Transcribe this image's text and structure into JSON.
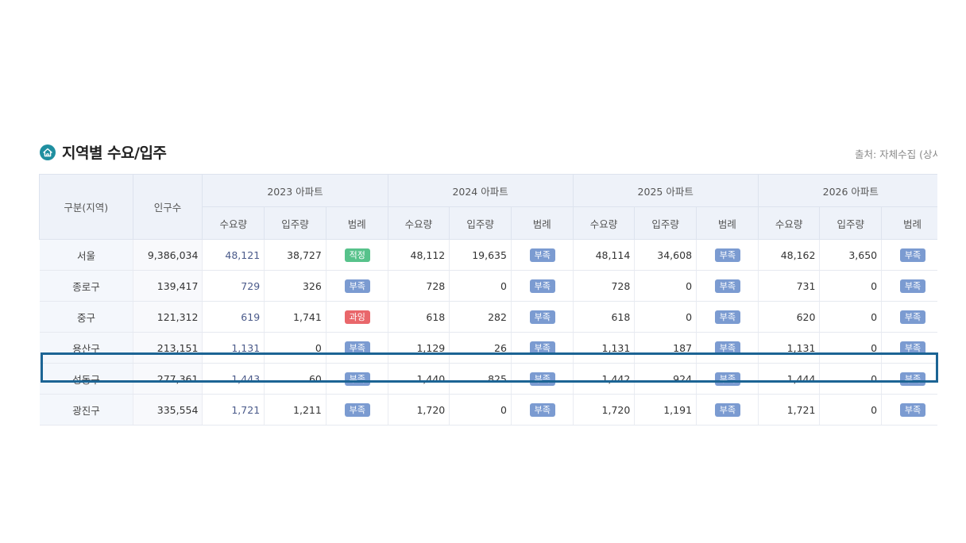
{
  "section": {
    "title": "지역별 수요/입주",
    "icon": "home-icon",
    "source": "출처: 자체수집 (상시"
  },
  "table": {
    "headers": {
      "region": "구분(지역)",
      "population": "인구수",
      "years": [
        "2023 아파트",
        "2024 아파트",
        "2025 아파트",
        "2026 아파트"
      ],
      "sub": [
        "수요량",
        "입주량",
        "범례"
      ]
    },
    "rows": [
      {
        "region": "서울",
        "population": "9,386,034",
        "years": [
          {
            "demand": "48,121",
            "supply": "38,727",
            "legend": "적정"
          },
          {
            "demand": "48,112",
            "supply": "19,635",
            "legend": "부족"
          },
          {
            "demand": "48,114",
            "supply": "34,608",
            "legend": "부족"
          },
          {
            "demand": "48,162",
            "supply": "3,650",
            "legend": "부족"
          }
        ]
      },
      {
        "region": "종로구",
        "population": "139,417",
        "years": [
          {
            "demand": "729",
            "supply": "326",
            "legend": "부족"
          },
          {
            "demand": "728",
            "supply": "0",
            "legend": "부족"
          },
          {
            "demand": "728",
            "supply": "0",
            "legend": "부족"
          },
          {
            "demand": "731",
            "supply": "0",
            "legend": "부족"
          }
        ]
      },
      {
        "region": "중구",
        "population": "121,312",
        "years": [
          {
            "demand": "619",
            "supply": "1,741",
            "legend": "과잉"
          },
          {
            "demand": "618",
            "supply": "282",
            "legend": "부족"
          },
          {
            "demand": "618",
            "supply": "0",
            "legend": "부족"
          },
          {
            "demand": "620",
            "supply": "0",
            "legend": "부족"
          }
        ]
      },
      {
        "region": "용산구",
        "population": "213,151",
        "years": [
          {
            "demand": "1,131",
            "supply": "0",
            "legend": "부족"
          },
          {
            "demand": "1,129",
            "supply": "26",
            "legend": "부족"
          },
          {
            "demand": "1,131",
            "supply": "187",
            "legend": "부족"
          },
          {
            "demand": "1,131",
            "supply": "0",
            "legend": "부족"
          }
        ]
      },
      {
        "region": "성동구",
        "population": "277,361",
        "highlighted": true,
        "years": [
          {
            "demand": "1,443",
            "supply": "60",
            "legend": "부족"
          },
          {
            "demand": "1,440",
            "supply": "825",
            "legend": "부족"
          },
          {
            "demand": "1,442",
            "supply": "924",
            "legend": "부족"
          },
          {
            "demand": "1,444",
            "supply": "0",
            "legend": "부족"
          }
        ]
      },
      {
        "region": "광진구",
        "population": "335,554",
        "years": [
          {
            "demand": "1,721",
            "supply": "1,211",
            "legend": "부족"
          },
          {
            "demand": "1,720",
            "supply": "0",
            "legend": "부족"
          },
          {
            "demand": "1,720",
            "supply": "1,191",
            "legend": "부족"
          },
          {
            "demand": "1,721",
            "supply": "0",
            "legend": "부족"
          }
        ]
      }
    ]
  },
  "colors": {
    "accent": "#1f8fa0",
    "highlight_border": "#1c6494",
    "legend": {
      "부족": "#7b9bd1",
      "적정": "#57c28b",
      "과잉": "#e9676b"
    }
  }
}
